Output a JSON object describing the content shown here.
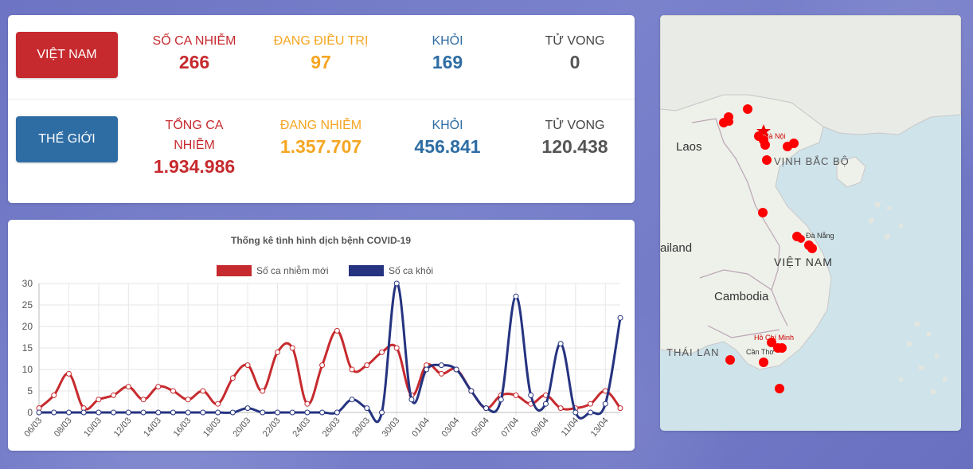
{
  "vietnam": {
    "button_label": "VIỆT NAM",
    "stats": [
      {
        "label": "SỐ CA NHIỄM",
        "value": "266",
        "color": "#c62a2e"
      },
      {
        "label": "ĐANG ĐIỀU TRỊ",
        "value": "97",
        "color": "#f5a623"
      },
      {
        "label": "KHỎI",
        "value": "169",
        "color": "#2e6da4"
      },
      {
        "label": "TỬ VONG",
        "value": "0",
        "color": "#555555"
      }
    ]
  },
  "world": {
    "button_label": "THẾ GIỚI",
    "stats": [
      {
        "label_line1": "TỔNG CA",
        "label_line2": "NHIỄM",
        "value": "1.934.986",
        "color": "#c62a2e"
      },
      {
        "label": "ĐANG NHIỄM",
        "value": "1.357.707",
        "color": "#f5a623"
      },
      {
        "label": "KHỎI",
        "value": "456.841",
        "color": "#2e6da4"
      },
      {
        "label": "TỬ VONG",
        "value": "120.438",
        "color": "#555555"
      }
    ]
  },
  "chart_data": {
    "type": "line",
    "title": "Thống kê tình hình dịch bệnh COVID-19",
    "categories": [
      "06/03",
      "07/03",
      "08/03",
      "09/03",
      "10/03",
      "11/03",
      "12/03",
      "13/03",
      "14/03",
      "15/03",
      "16/03",
      "17/03",
      "18/03",
      "19/03",
      "20/03",
      "21/03",
      "22/03",
      "23/03",
      "24/03",
      "25/03",
      "26/03",
      "27/03",
      "28/03",
      "29/03",
      "30/03",
      "31/03",
      "01/04",
      "02/04",
      "03/04",
      "04/04",
      "05/04",
      "06/04",
      "07/04",
      "08/04",
      "09/04",
      "10/04",
      "11/04",
      "12/04",
      "13/04",
      "14/04"
    ],
    "tick_labels": [
      "06/03",
      "08/03",
      "10/03",
      "12/03",
      "14/03",
      "16/03",
      "18/03",
      "20/03",
      "22/03",
      "24/03",
      "26/03",
      "28/03",
      "30/03",
      "01/04",
      "03/04",
      "05/04",
      "07/04",
      "09/04",
      "11/04",
      "13/04"
    ],
    "series": [
      {
        "name": "Số ca nhiễm mới",
        "color": "#c62a2e",
        "values": [
          1,
          4,
          9,
          1,
          3,
          4,
          6,
          3,
          6,
          5,
          3,
          5,
          2,
          8,
          11,
          5,
          14,
          15,
          2,
          11,
          19,
          10,
          11,
          14,
          15,
          4,
          11,
          9,
          10,
          5,
          1,
          4,
          4,
          2,
          4,
          1,
          1,
          2,
          5,
          1
        ]
      },
      {
        "name": "Số ca khỏi",
        "color": "#253380",
        "values": [
          0,
          0,
          0,
          0,
          0,
          0,
          0,
          0,
          0,
          0,
          0,
          0,
          0,
          0,
          1,
          0,
          0,
          0,
          0,
          0,
          0,
          3,
          1,
          0,
          30,
          3,
          10,
          11,
          10,
          5,
          1,
          3,
          27,
          4,
          2,
          16,
          0,
          0,
          2,
          22
        ]
      }
    ],
    "ylim": [
      0,
      30
    ],
    "yticks": [
      0,
      5,
      10,
      15,
      20,
      25,
      30
    ],
    "grid": true,
    "legend": "top"
  },
  "map": {
    "labels": {
      "laos": "Laos",
      "thailand": "ailand",
      "cambodia": "Cambodia",
      "vietnam": "VIỆT NAM",
      "gulf_tonkin": "VỊNH BẮC BỘ",
      "gulf_thailand": "THÁI LAN",
      "hanoi": "Hà Nội",
      "danang": "Đà Nẵng",
      "hcm": "Hồ Chí Minh",
      "cantho": "Cần Thơ"
    },
    "marker_color": "#ff0000"
  }
}
